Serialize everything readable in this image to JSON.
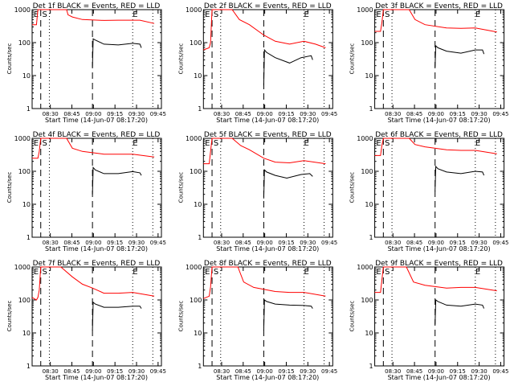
{
  "chart_data": [
    {
      "type": "line",
      "title": "Det 1f BLACK = Events, RED = LLD",
      "xlabel": "Start Time (14-Jun-07 08:17:20)",
      "ylabel": "Counts/sec",
      "yscale": "log",
      "ylim": [
        1,
        1000
      ],
      "yticks": [
        "1",
        "10",
        "100",
        "1000"
      ],
      "xticks": [
        "08:30",
        "08:45",
        "09:00",
        "09:15",
        "09:30",
        "09:45"
      ],
      "markers": [
        "E",
        "S",
        "E"
      ],
      "series": [
        {
          "name": "LLD",
          "color": "#ff0000",
          "x_min": [
            0,
            3,
            4,
            24,
            25,
            28,
            35,
            50,
            60,
            75,
            85
          ],
          "values": [
            350,
            350,
            1000,
            1000,
            700,
            600,
            500,
            470,
            480,
            480,
            380
          ]
        },
        {
          "name": "Events",
          "color": "#000000",
          "x_min": [
            42,
            42.5,
            44,
            50,
            60,
            70,
            75,
            76
          ],
          "values": [
            18,
            130,
            120,
            90,
            85,
            95,
            90,
            70
          ]
        }
      ]
    },
    {
      "type": "line",
      "title": "Det 2f BLACK = Events, RED = LLD",
      "xlabel": "Start Time (14-Jun-07 08:17:20)",
      "ylabel": "Counts/sec",
      "yscale": "log",
      "ylim": [
        1,
        1000
      ],
      "yticks": [
        "1",
        "10",
        "100",
        "1000"
      ],
      "xticks": [
        "08:30",
        "08:45",
        "09:00",
        "09:15",
        "09:30",
        "09:45"
      ],
      "markers": [
        "E",
        "S",
        "E"
      ],
      "series": [
        {
          "name": "LLD",
          "color": "#ff0000",
          "x_min": [
            0,
            4,
            5,
            6,
            20,
            25,
            32,
            42,
            50,
            60,
            70,
            78,
            85
          ],
          "values": [
            60,
            70,
            100,
            1000,
            1000,
            500,
            350,
            170,
            110,
            90,
            110,
            90,
            70
          ]
        },
        {
          "name": "Events",
          "color": "#000000",
          "x_min": [
            42,
            42.5,
            44,
            50,
            60,
            68,
            75,
            76
          ],
          "values": [
            5,
            60,
            50,
            35,
            24,
            35,
            40,
            30
          ]
        }
      ]
    },
    {
      "type": "line",
      "title": "Det 3f BLACK = Events, RED = LLD",
      "xlabel": "Start Time (14-Jun-07 08:17:20)",
      "ylabel": "Counts/sec",
      "yscale": "log",
      "ylim": [
        1,
        1000
      ],
      "yticks": [
        "1",
        "10",
        "100",
        "1000"
      ],
      "xticks": [
        "08:30",
        "08:45",
        "09:00",
        "09:15",
        "09:30",
        "09:45"
      ],
      "markers": [
        "E",
        "S",
        "E"
      ],
      "series": [
        {
          "name": "LLD",
          "color": "#ff0000",
          "x_min": [
            0,
            4,
            5,
            6,
            24,
            28,
            35,
            50,
            60,
            70,
            85
          ],
          "values": [
            220,
            220,
            400,
            1000,
            1000,
            500,
            350,
            280,
            270,
            280,
            210
          ]
        },
        {
          "name": "Events",
          "color": "#000000",
          "x_min": [
            42,
            42.5,
            44,
            50,
            60,
            70,
            75,
            76
          ],
          "values": [
            18,
            80,
            70,
            55,
            48,
            60,
            60,
            45
          ]
        }
      ]
    },
    {
      "type": "line",
      "title": "Det 4f BLACK = Events, RED = LLD",
      "xlabel": "Start Time (14-Jun-07 08:17:20)",
      "ylabel": "Counts/sec",
      "yscale": "log",
      "ylim": [
        1,
        1000
      ],
      "yticks": [
        "1",
        "10",
        "100",
        "1000"
      ],
      "xticks": [
        "08:30",
        "08:45",
        "09:00",
        "09:15",
        "09:30",
        "09:45"
      ],
      "markers": [
        "E",
        "S",
        "E"
      ],
      "series": [
        {
          "name": "LLD",
          "color": "#ff0000",
          "x_min": [
            0,
            4,
            5,
            6,
            24,
            28,
            35,
            50,
            60,
            70,
            85
          ],
          "values": [
            250,
            250,
            400,
            1000,
            1000,
            500,
            400,
            330,
            330,
            330,
            270
          ]
        },
        {
          "name": "Events",
          "color": "#000000",
          "x_min": [
            42,
            42.5,
            44,
            50,
            60,
            70,
            75,
            76
          ],
          "values": [
            20,
            130,
            110,
            85,
            85,
            98,
            90,
            75
          ]
        }
      ]
    },
    {
      "type": "line",
      "title": "Det 5f BLACK = Events, RED = LLD",
      "xlabel": "Start Time (14-Jun-07 08:17:20)",
      "ylabel": "Counts/sec",
      "yscale": "log",
      "ylim": [
        1,
        1000
      ],
      "yticks": [
        "1",
        "10",
        "100",
        "1000"
      ],
      "xticks": [
        "08:30",
        "08:45",
        "09:00",
        "09:15",
        "09:30",
        "09:45"
      ],
      "markers": [
        "E",
        "S",
        "E"
      ],
      "series": [
        {
          "name": "LLD",
          "color": "#ff0000",
          "x_min": [
            0,
            4,
            5,
            6,
            20,
            26,
            32,
            42,
            50,
            60,
            70,
            85
          ],
          "values": [
            170,
            170,
            400,
            1000,
            1000,
            600,
            450,
            250,
            190,
            180,
            210,
            170
          ]
        },
        {
          "name": "Events",
          "color": "#000000",
          "x_min": [
            42,
            42.5,
            44,
            50,
            58,
            68,
            74,
            76
          ],
          "values": [
            15,
            110,
            95,
            75,
            62,
            80,
            85,
            70
          ]
        }
      ]
    },
    {
      "type": "line",
      "title": "Det 6f BLACK = Events, RED = LLD",
      "xlabel": "Start Time (14-Jun-07 08:17:20)",
      "ylabel": "Counts/sec",
      "yscale": "log",
      "ylim": [
        1,
        1000
      ],
      "yticks": [
        "1",
        "10",
        "100",
        "1000"
      ],
      "xticks": [
        "08:30",
        "08:45",
        "09:00",
        "09:15",
        "09:30",
        "09:45"
      ],
      "markers": [
        "E",
        "S",
        "E"
      ],
      "series": [
        {
          "name": "LLD",
          "color": "#ff0000",
          "x_min": [
            0,
            4,
            5,
            6,
            24,
            28,
            35,
            50,
            60,
            70,
            85
          ],
          "values": [
            300,
            300,
            600,
            1000,
            1000,
            650,
            550,
            450,
            430,
            430,
            340
          ]
        },
        {
          "name": "Events",
          "color": "#000000",
          "x_min": [
            42,
            42.5,
            44,
            50,
            60,
            70,
            75,
            76
          ],
          "values": [
            25,
            140,
            120,
            95,
            85,
            100,
            95,
            75
          ]
        }
      ]
    },
    {
      "type": "line",
      "title": "Det 7f BLACK = Events, RED = LLD",
      "xlabel": "Start Time (14-Jun-07 08:17:20)",
      "ylabel": "Counts/sec",
      "yscale": "log",
      "ylim": [
        1,
        1000
      ],
      "yticks": [
        "1",
        "10",
        "100",
        "1000"
      ],
      "xticks": [
        "08:30",
        "08:45",
        "09:00",
        "09:15",
        "09:30",
        "09:45"
      ],
      "markers": [
        "E",
        "S",
        "E"
      ],
      "series": [
        {
          "name": "LLD",
          "color": "#ff0000",
          "x_min": [
            0,
            3,
            4,
            5,
            6,
            20,
            28,
            35,
            42,
            50,
            60,
            70,
            85
          ],
          "values": [
            120,
            100,
            120,
            200,
            1000,
            1000,
            500,
            300,
            230,
            160,
            160,
            170,
            130
          ]
        },
        {
          "name": "Events",
          "color": "#000000",
          "x_min": [
            42,
            42.5,
            44,
            50,
            60,
            70,
            75,
            76
          ],
          "values": [
            12,
            85,
            75,
            60,
            60,
            65,
            65,
            55
          ]
        }
      ]
    },
    {
      "type": "line",
      "title": "Det 8f BLACK = Events, RED = LLD",
      "xlabel": "Start Time (14-Jun-07 08:17:20)",
      "ylabel": "Counts/sec",
      "yscale": "log",
      "ylim": [
        1,
        1000
      ],
      "yticks": [
        "1",
        "10",
        "100",
        "1000"
      ],
      "xticks": [
        "08:30",
        "08:45",
        "09:00",
        "09:15",
        "09:30",
        "09:45"
      ],
      "markers": [
        "E",
        "S",
        "E"
      ],
      "series": [
        {
          "name": "LLD",
          "color": "#ff0000",
          "x_min": [
            0,
            4,
            5,
            6,
            24,
            28,
            35,
            50,
            60,
            70,
            85
          ],
          "values": [
            110,
            130,
            250,
            1000,
            1000,
            350,
            240,
            180,
            170,
            170,
            130
          ]
        },
        {
          "name": "Events",
          "color": "#000000",
          "x_min": [
            42,
            42.5,
            44,
            50,
            60,
            70,
            75,
            76
          ],
          "values": [
            12,
            100,
            90,
            75,
            70,
            68,
            65,
            55
          ]
        }
      ]
    },
    {
      "type": "line",
      "title": "Det 9f BLACK = Events, RED = LLD",
      "xlabel": "Start Time (14-Jun-07 08:17:20)",
      "ylabel": "Counts/sec",
      "yscale": "log",
      "ylim": [
        1,
        1000
      ],
      "yticks": [
        "1",
        "10",
        "100",
        "1000"
      ],
      "xticks": [
        "08:30",
        "08:45",
        "09:00",
        "09:15",
        "09:30",
        "09:45"
      ],
      "markers": [
        "E",
        "S",
        "E"
      ],
      "series": [
        {
          "name": "LLD",
          "color": "#ff0000",
          "x_min": [
            0,
            4,
            5,
            6,
            22,
            27,
            35,
            50,
            60,
            70,
            85
          ],
          "values": [
            170,
            170,
            400,
            1000,
            1000,
            350,
            280,
            230,
            240,
            240,
            190
          ]
        },
        {
          "name": "Events",
          "color": "#000000",
          "x_min": [
            42,
            42.5,
            44,
            50,
            60,
            70,
            75,
            76
          ],
          "values": [
            18,
            100,
            90,
            70,
            65,
            75,
            70,
            55
          ]
        }
      ]
    }
  ],
  "vlines": {
    "dashed_min": [
      6,
      42
    ],
    "dotted_min": [
      12,
      70,
      84
    ]
  }
}
